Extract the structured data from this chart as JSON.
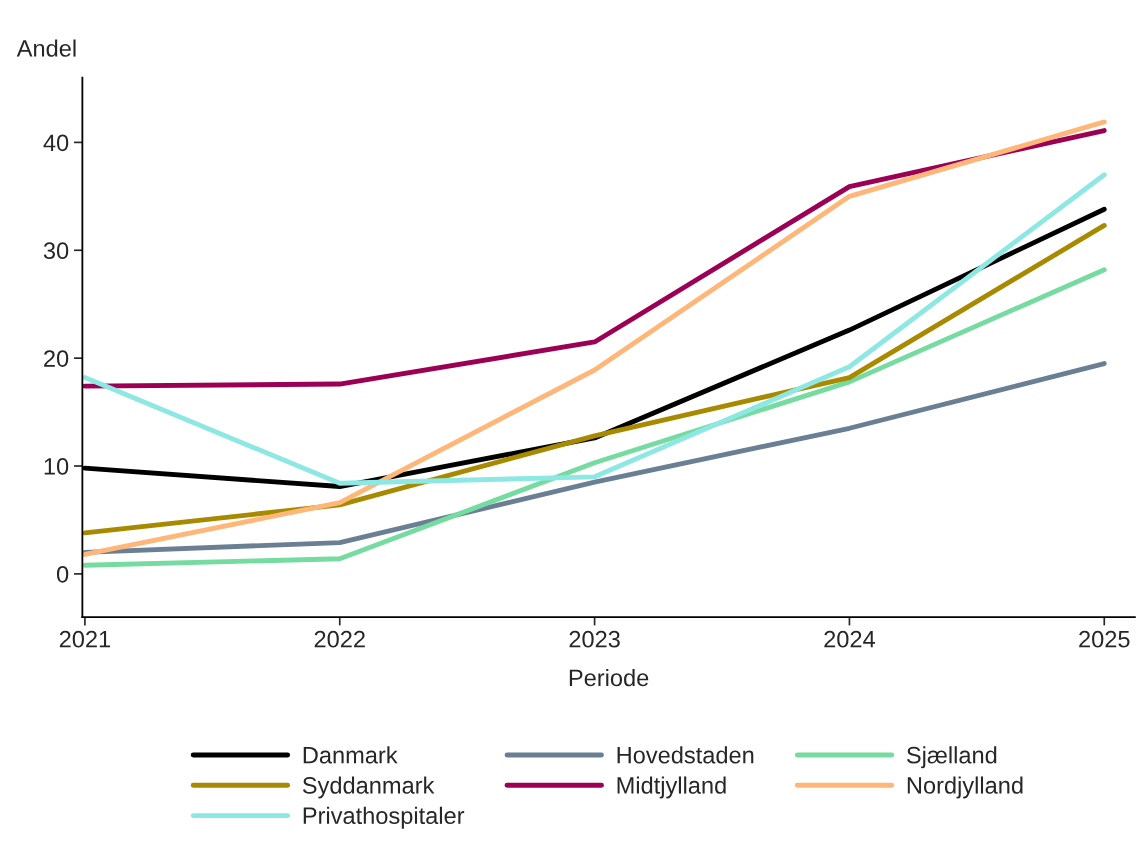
{
  "chart_data": {
    "type": "line",
    "ylabel": "Andel",
    "xlabel": "Periode",
    "x": [
      2021,
      2022,
      2023,
      2024,
      2025
    ],
    "xlim": [
      2020.99,
      2025.12
    ],
    "xticks": [
      2021,
      2022,
      2023,
      2024,
      2025
    ],
    "ylim": [
      -4,
      46
    ],
    "yticks": [
      0,
      10,
      20,
      30,
      40
    ],
    "grid": false,
    "legend": "bottom",
    "marker": "none",
    "line_style": "solid",
    "series": [
      {
        "name": "Danmark",
        "color": "#000000",
        "values": [
          9.8,
          8.1,
          12.6,
          22.6,
          33.8
        ]
      },
      {
        "name": "Hovedstaden",
        "color": "#6a7f93",
        "values": [
          2.0,
          2.9,
          8.5,
          13.5,
          19.5
        ]
      },
      {
        "name": "Sjælland",
        "color": "#76dba0",
        "values": [
          0.8,
          1.4,
          10.3,
          17.8,
          28.2
        ]
      },
      {
        "name": "Syddanmark",
        "color": "#a88a00",
        "values": [
          3.8,
          6.4,
          12.8,
          18.2,
          32.3
        ]
      },
      {
        "name": "Midtjylland",
        "color": "#9b0055",
        "values": [
          17.4,
          17.6,
          21.5,
          35.9,
          41.1
        ]
      },
      {
        "name": "Nordjylland",
        "color": "#ffb679",
        "values": [
          1.8,
          6.6,
          18.9,
          35.0,
          41.9
        ]
      },
      {
        "name": "Privathospitaler",
        "color": "#8de8e3",
        "values": [
          18.2,
          8.4,
          9.0,
          19.2,
          37.0
        ]
      }
    ]
  }
}
